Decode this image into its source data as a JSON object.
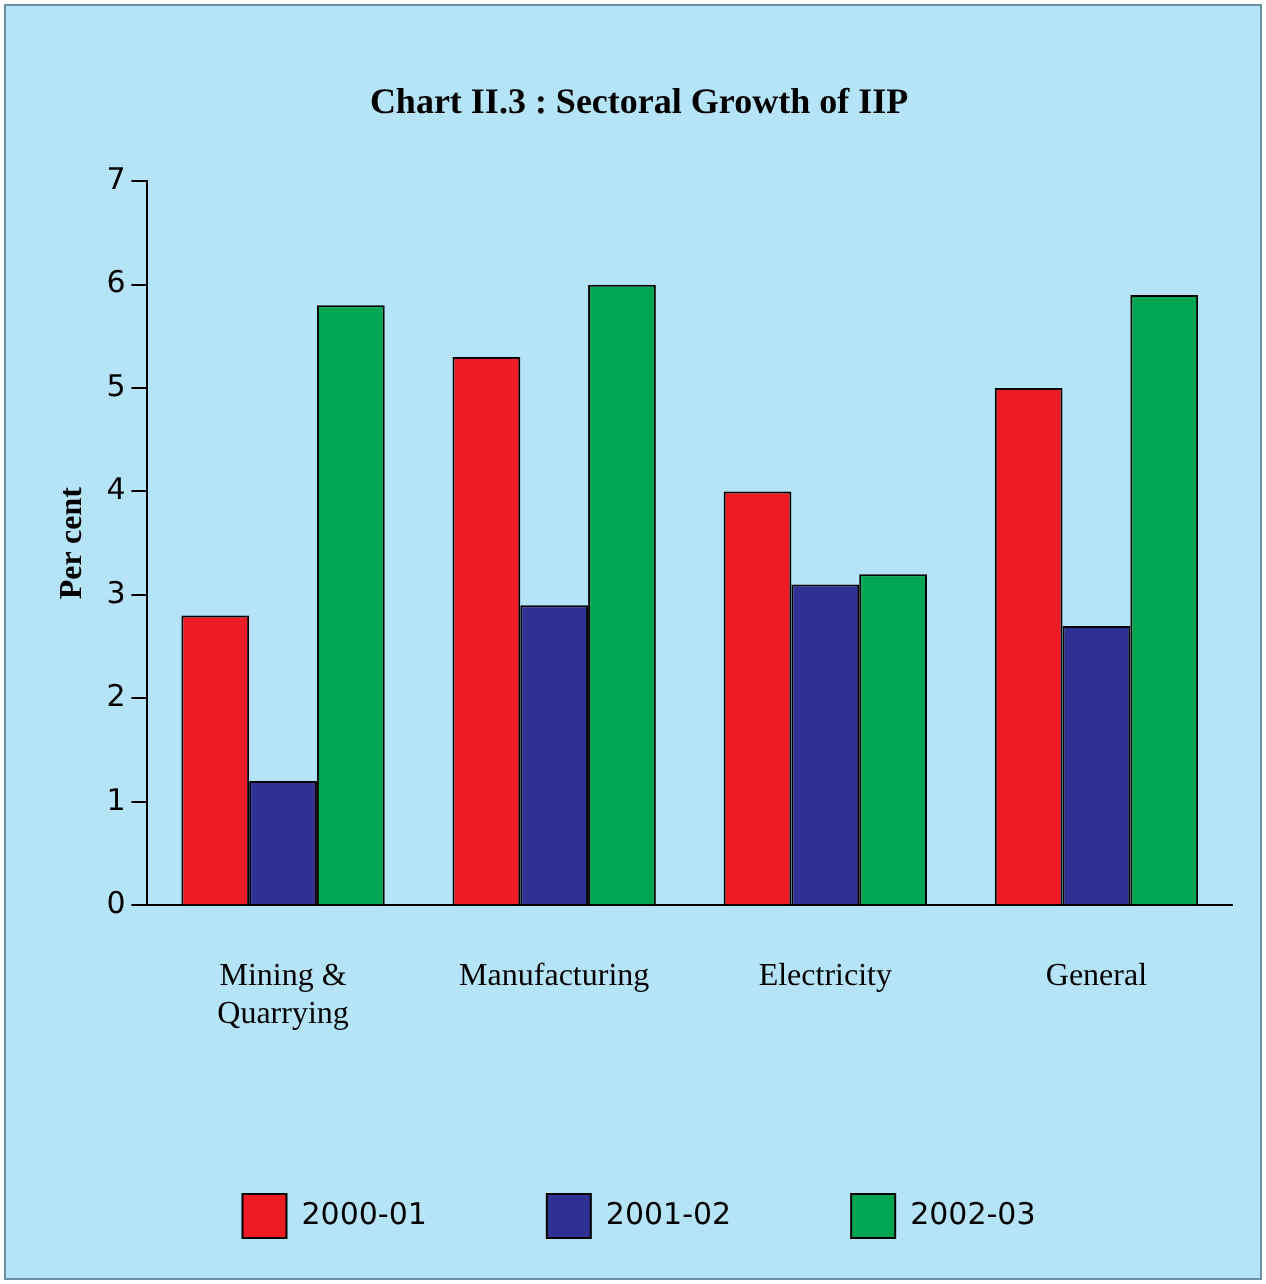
{
  "chart_data": {
    "type": "bar",
    "title": "Chart II.3 : Sectoral Growth of IIP",
    "ylabel": "Per cent",
    "categories": [
      "Mining & Quarrying",
      "Manufacturing",
      "Electricity",
      "General"
    ],
    "series": [
      {
        "name": "2000-01",
        "color": "#ed1c24",
        "values": [
          2.8,
          5.3,
          4.0,
          5.0
        ]
      },
      {
        "name": "2001-02",
        "color": "#2e3192",
        "values": [
          1.2,
          2.9,
          3.1,
          2.7
        ]
      },
      {
        "name": "2002-03",
        "color": "#00a651",
        "values": [
          5.8,
          6.0,
          3.2,
          5.9
        ]
      }
    ],
    "ylim": [
      0,
      7
    ],
    "yticks": [
      0,
      1,
      2,
      3,
      4,
      5,
      6,
      7
    ],
    "grid": false,
    "legend": "bottom"
  }
}
